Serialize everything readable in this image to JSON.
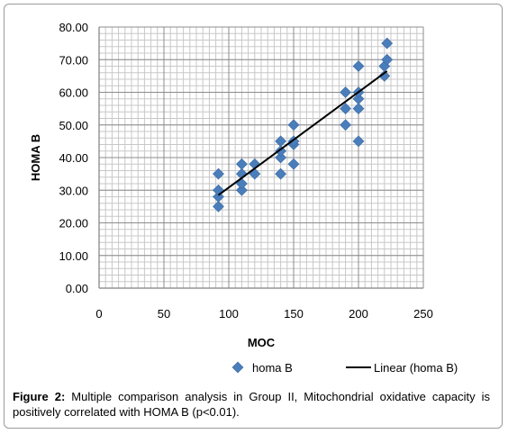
{
  "chart_data": {
    "type": "scatter",
    "xlabel": "MOC",
    "ylabel": "HOMA B",
    "xlim": [
      0,
      250
    ],
    "ylim": [
      0,
      80
    ],
    "x_ticks": [
      "0",
      "50",
      "100",
      "150",
      "200",
      "250"
    ],
    "y_ticks": [
      "0.00",
      "10.00",
      "20.00",
      "30.00",
      "40.00",
      "50.00",
      "60.00",
      "70.00",
      "80.00"
    ],
    "grid": true,
    "legend_position": "bottom",
    "series": [
      {
        "name": "homa B",
        "color": "#4a7ebb",
        "marker": "diamond",
        "points": [
          [
            92,
            25
          ],
          [
            92,
            28
          ],
          [
            92,
            30
          ],
          [
            92,
            35
          ],
          [
            110,
            30
          ],
          [
            110,
            32
          ],
          [
            110,
            35
          ],
          [
            110,
            38
          ],
          [
            120,
            35
          ],
          [
            120,
            38
          ],
          [
            140,
            35
          ],
          [
            140,
            40
          ],
          [
            140,
            42
          ],
          [
            140,
            45
          ],
          [
            150,
            38
          ],
          [
            150,
            44
          ],
          [
            150,
            45
          ],
          [
            150,
            50
          ],
          [
            190,
            50
          ],
          [
            190,
            55
          ],
          [
            190,
            60
          ],
          [
            200,
            45
          ],
          [
            200,
            55
          ],
          [
            200,
            58
          ],
          [
            200,
            60
          ],
          [
            200,
            68
          ],
          [
            220,
            65
          ],
          [
            220,
            68
          ],
          [
            222,
            70
          ],
          [
            222,
            75
          ]
        ]
      },
      {
        "name": "Linear (homa B)",
        "color": "#000000",
        "type": "line",
        "points": [
          [
            92,
            28.5
          ],
          [
            222,
            66.5
          ]
        ]
      }
    ]
  },
  "caption": {
    "label": "Figure 2:",
    "text": " Multiple comparison analysis in Group II, Mitochondrial oxidative capacity is positively correlated with HOMA B (p<0.01)."
  }
}
